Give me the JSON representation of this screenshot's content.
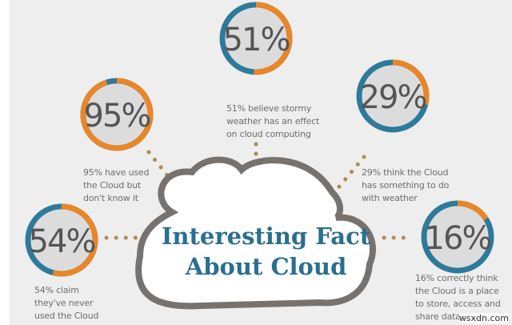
{
  "title_line1": "Interesting Fact",
  "title_line2": "About Cloud",
  "colors": {
    "orange": "#e8862a",
    "blue": "#2e7a9a",
    "background": "#eeeeee",
    "cloud_outline": "#77726d",
    "title": "#2a6f8f"
  },
  "facts": [
    {
      "value": 51,
      "label": "51%",
      "caption": [
        "51% believe stormy",
        "weather has an effect",
        "on cloud computing"
      ]
    },
    {
      "value": 95,
      "label": "95%",
      "caption": [
        "95% have used",
        "the Cloud but",
        "don't know it"
      ]
    },
    {
      "value": 29,
      "label": "29%",
      "caption": [
        "29% think the Cloud",
        "has something to do",
        "with weather"
      ]
    },
    {
      "value": 54,
      "label": "54%",
      "caption": [
        "54% claim",
        "they've never",
        "used the Cloud"
      ]
    },
    {
      "value": 16,
      "label": "16%",
      "caption": [
        "16% correctly think",
        "the Cloud is a place",
        "to store, access and",
        "share data"
      ]
    }
  ],
  "watermark": "wsxdn.com"
}
